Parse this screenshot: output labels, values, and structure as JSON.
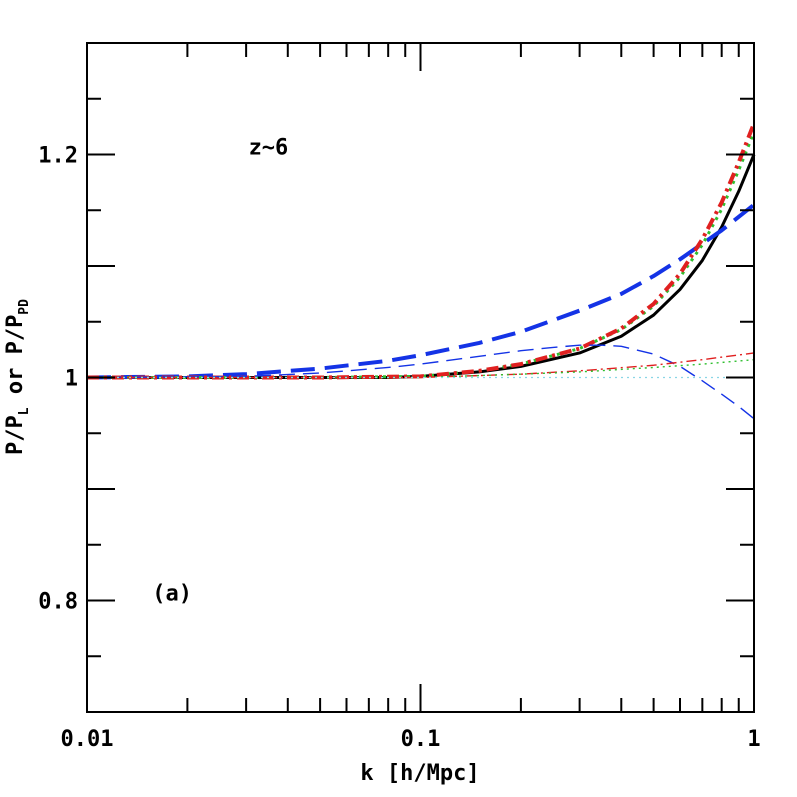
{
  "chart_data": {
    "type": "line",
    "title": "",
    "xlabel": "k [h/Mpc]",
    "ylabel": {
      "base": "P/P",
      "sub1": "L",
      "mid": " or P/P",
      "sub2": "PD"
    },
    "xscale": "log",
    "xlim": [
      0.01,
      1
    ],
    "ylim": [
      0.7,
      1.3
    ],
    "grid": false,
    "x_ticks": [
      {
        "value": 0.01,
        "label": "0.01"
      },
      {
        "value": 0.1,
        "label": "0.1"
      },
      {
        "value": 1,
        "label": "1"
      }
    ],
    "y_ticks": [
      {
        "value": 0.8,
        "label": "0.8"
      },
      {
        "value": 1,
        "label": "1"
      },
      {
        "value": 1.2,
        "label": "1.2"
      }
    ],
    "annotations": [
      {
        "text": "z~6",
        "x": 0.035,
        "y": 1.2
      },
      {
        "text": "(a)",
        "x": 0.018,
        "y": 0.8
      }
    ],
    "series": [
      {
        "id": "black-thick-solid",
        "color": "#000000",
        "width": 3,
        "dash": "",
        "x": [
          0.01,
          0.02,
          0.05,
          0.08,
          0.1,
          0.15,
          0.2,
          0.3,
          0.4,
          0.5,
          0.6,
          0.7,
          0.8,
          0.9,
          1.0
        ],
        "y": [
          1.0,
          1.0,
          1.0,
          1.0,
          1.001,
          1.005,
          1.01,
          1.022,
          1.037,
          1.056,
          1.079,
          1.105,
          1.135,
          1.167,
          1.2
        ]
      },
      {
        "id": "blue-thick-long-dash",
        "color": "#1433e6",
        "width": 4,
        "dash": "24 10",
        "x": [
          0.01,
          0.02,
          0.03,
          0.05,
          0.08,
          0.1,
          0.15,
          0.2,
          0.3,
          0.4,
          0.5,
          0.6,
          0.7,
          0.8,
          1.0
        ],
        "y": [
          1.0,
          1.001,
          1.003,
          1.008,
          1.015,
          1.02,
          1.031,
          1.041,
          1.06,
          1.075,
          1.091,
          1.106,
          1.12,
          1.132,
          1.155
        ]
      },
      {
        "id": "green-thick-dotted",
        "color": "#2fbf2f",
        "width": 3,
        "dash": "3 5",
        "x": [
          0.01,
          0.05,
          0.1,
          0.15,
          0.2,
          0.3,
          0.4,
          0.5,
          0.6,
          0.7,
          0.8,
          0.9,
          1.0
        ],
        "y": [
          1.0,
          1.0,
          1.001,
          1.006,
          1.012,
          1.026,
          1.043,
          1.064,
          1.09,
          1.119,
          1.151,
          1.186,
          1.22
        ]
      },
      {
        "id": "red-thick-dash-dot",
        "color": "#e02020",
        "width": 4,
        "dash": "12 5 3 5",
        "x": [
          0.01,
          0.05,
          0.1,
          0.15,
          0.2,
          0.3,
          0.4,
          0.5,
          0.6,
          0.7,
          0.8,
          0.9,
          1.0
        ],
        "y": [
          1.0,
          1.0,
          1.001,
          1.006,
          1.012,
          1.026,
          1.044,
          1.066,
          1.093,
          1.124,
          1.157,
          1.193,
          1.228
        ]
      },
      {
        "id": "blue-thin-dash",
        "color": "#1433e6",
        "width": 1.4,
        "dash": "16 8",
        "x": [
          0.01,
          0.03,
          0.05,
          0.08,
          0.1,
          0.15,
          0.2,
          0.25,
          0.3,
          0.35,
          0.4,
          0.5,
          0.6,
          0.7,
          0.8,
          0.9,
          1.0
        ],
        "y": [
          1.0,
          1.001,
          1.004,
          1.009,
          1.012,
          1.019,
          1.024,
          1.027,
          1.029,
          1.029,
          1.028,
          1.021,
          1.01,
          0.997,
          0.985,
          0.974,
          0.963
        ]
      },
      {
        "id": "red-thin-dash-dot",
        "color": "#e02020",
        "width": 1.4,
        "dash": "10 4 2 4",
        "x": [
          0.01,
          0.1,
          0.2,
          0.3,
          0.5,
          0.7,
          1.0
        ],
        "y": [
          1.0,
          1.0,
          1.003,
          1.006,
          1.011,
          1.016,
          1.022
        ]
      },
      {
        "id": "green-thin-dotted",
        "color": "#2fbf2f",
        "width": 1.4,
        "dash": "2 4",
        "x": [
          0.01,
          0.1,
          0.2,
          0.3,
          0.5,
          0.7,
          1.0
        ],
        "y": [
          1.0,
          1.0,
          1.003,
          1.005,
          1.009,
          1.012,
          1.016
        ]
      },
      {
        "id": "cyan-thin-dotted",
        "color": "#8ad6e6",
        "width": 1.2,
        "dash": "2 4",
        "x": [
          0.01,
          0.1,
          0.3,
          0.5,
          1.0
        ],
        "y": [
          1.0,
          1.0,
          1.0,
          1.0,
          1.0
        ]
      }
    ]
  }
}
